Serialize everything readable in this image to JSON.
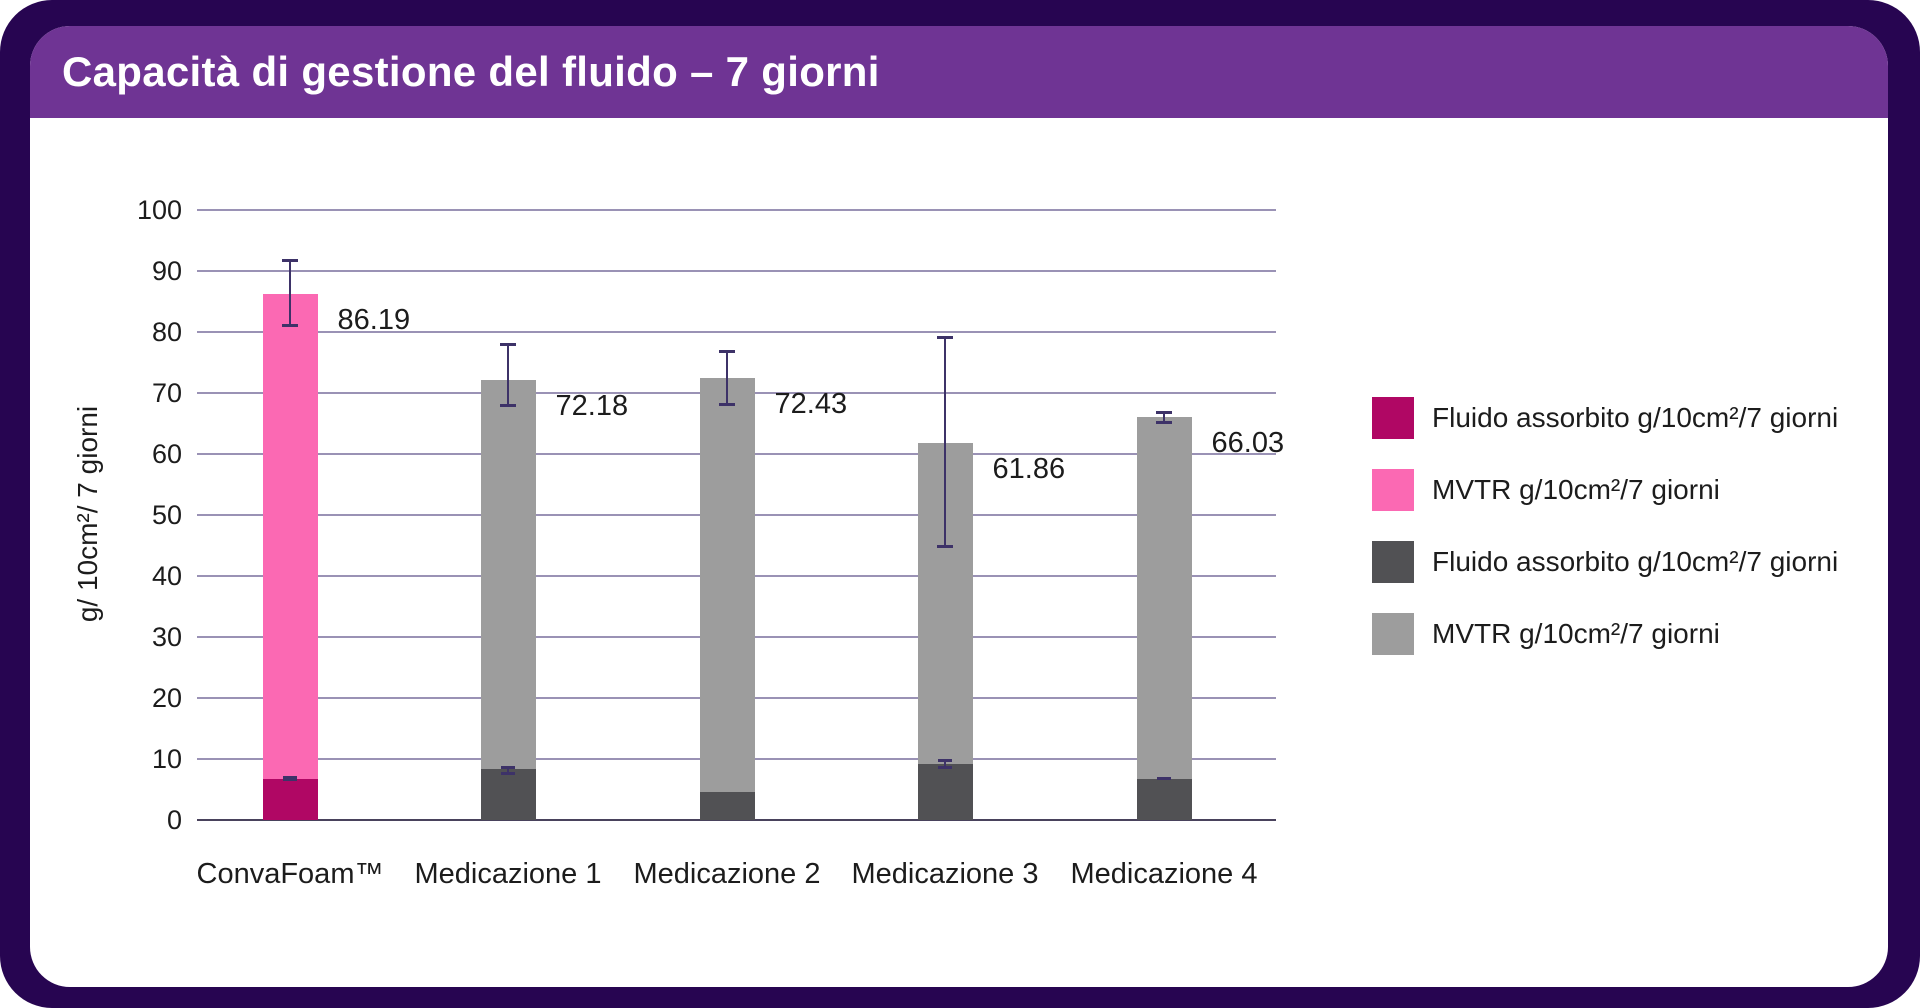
{
  "header": {
    "title": "Capacità di gestione del fluido – 7 giorni"
  },
  "colors": {
    "frame": "#270551",
    "header_band": "#6F3494",
    "card_background": "#FFFFFF",
    "gridline": "#9A92B5",
    "axis_line": "#49425C",
    "error_bar": "#3D3268",
    "text": "#1C1C1C",
    "title_text": "#FFFFFF",
    "convafoam_fluido": "#B00764",
    "convafoam_mvtr": "#FB69B3",
    "competitor_fluido": "#515154",
    "competitor_mvtr": "#9D9D9D"
  },
  "legend": {
    "items": [
      {
        "label": "Fluido assorbito g/10cm²/7 giorni",
        "color": "#B00764"
      },
      {
        "label": "MVTR g/10cm²/7 giorni",
        "color": "#FB69B3"
      },
      {
        "label": "Fluido assorbito g/10cm²/7 giorni",
        "color": "#515154"
      },
      {
        "label": "MVTR g/10cm²/7 giorni",
        "color": "#9D9D9D"
      }
    ]
  },
  "chart_data": {
    "type": "bar",
    "stacked": true,
    "title": "Capacità di gestione del fluido – 7 giorni",
    "ylabel": "g/ 10cm²/ 7 giorni",
    "xlabel": "",
    "ylim": [
      0,
      100
    ],
    "ytick_step": 10,
    "yticks": [
      "0",
      "10",
      "20",
      "30",
      "40",
      "50",
      "60",
      "70",
      "80",
      "90",
      "100"
    ],
    "grid": true,
    "legend_position": "right",
    "categories": [
      "ConvaFoam™",
      "Medicazione 1",
      "Medicazione 2",
      "Medicazione 3",
      "Medicazione 4"
    ],
    "bars": [
      {
        "category": "ConvaFoam™",
        "total": 86.19,
        "total_label": "86.19",
        "fluido_assorbito_est": 6.8,
        "mvtr_est": 79.4,
        "mvtr_error": {
          "low": 80.8,
          "high": 91.9
        },
        "fluid_error": {
          "low": 6.4,
          "high": 7.2
        },
        "colors": {
          "fluido": "#B00764",
          "mvtr": "#FB69B3"
        }
      },
      {
        "category": "Medicazione 1",
        "total": 72.18,
        "total_label": "72.18",
        "fluido_assorbito_est": 8.3,
        "mvtr_est": 63.9,
        "mvtr_error": {
          "low": 67.7,
          "high": 78.2
        },
        "fluid_error": {
          "low": 7.4,
          "high": 8.9
        },
        "colors": {
          "fluido": "#515154",
          "mvtr": "#9D9D9D"
        }
      },
      {
        "category": "Medicazione 2",
        "total": 72.43,
        "total_label": "72.43",
        "fluido_assorbito_est": 4.6,
        "mvtr_est": 67.8,
        "mvtr_error": {
          "low": 67.9,
          "high": 77.0
        },
        "fluid_error": null,
        "colors": {
          "fluido": "#515154",
          "mvtr": "#9D9D9D"
        }
      },
      {
        "category": "Medicazione 3",
        "total": 61.86,
        "total_label": "61.86",
        "fluido_assorbito_est": 9.1,
        "mvtr_est": 52.8,
        "mvtr_error": {
          "low": 44.6,
          "high": 79.3
        },
        "fluid_error": {
          "low": 8.3,
          "high": 10.0
        },
        "colors": {
          "fluido": "#515154",
          "mvtr": "#9D9D9D"
        }
      },
      {
        "category": "Medicazione 4",
        "total": 66.03,
        "total_label": "66.03",
        "fluido_assorbito_est": 6.8,
        "mvtr_est": 59.2,
        "mvtr_error": {
          "low": 64.9,
          "high": 67.1
        },
        "fluid_error": {
          "low": 6.5,
          "high": 7.1
        },
        "colors": {
          "fluido": "#515154",
          "mvtr": "#9D9D9D"
        }
      }
    ]
  }
}
